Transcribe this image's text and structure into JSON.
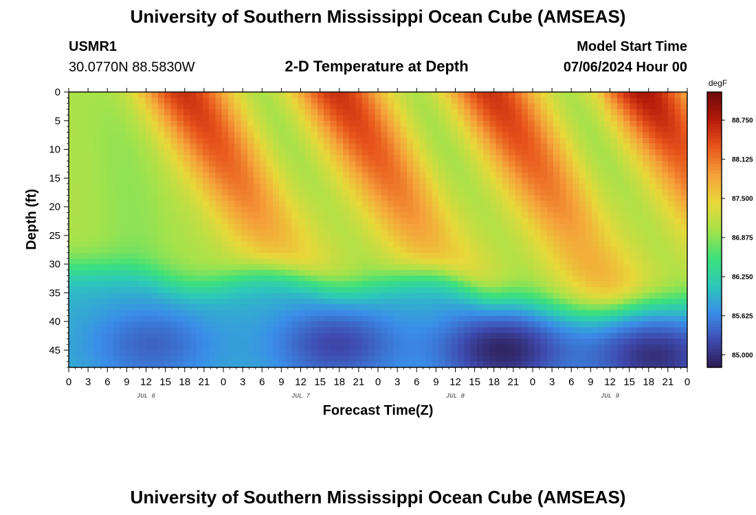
{
  "header": {
    "title": "University of Southern Mississippi Ocean Cube (AMSEAS)",
    "station_id": "USMR1",
    "coordinates": "30.0770N  88.5830W",
    "chart_subtitle": "2-D Temperature at Depth",
    "model_start_label": "Model Start Time",
    "model_start_value": "07/06/2024 Hour 00"
  },
  "footer": {
    "title": "University of Southern Mississippi Ocean Cube (AMSEAS)"
  },
  "colors": {
    "colormap": [
      "#2c1a4e",
      "#3f4bb0",
      "#3a8ee8",
      "#2cc9b8",
      "#3ee17a",
      "#a7e24a",
      "#e8d83a",
      "#f5a13a",
      "#e8571c",
      "#b51a0a",
      "#6e0a0a"
    ]
  },
  "chart_data": {
    "type": "heatmap",
    "title": "2-D Temperature at Depth",
    "xlabel": "Forecast Time(Z)",
    "ylabel": "Depth (ft)",
    "x_unit": "hours since 07/06/2024 00Z",
    "xlim": [
      0,
      96
    ],
    "ylim": [
      0,
      48
    ],
    "x_ticks": [
      0,
      3,
      6,
      9,
      12,
      15,
      18,
      21,
      24,
      27,
      30,
      33,
      36,
      39,
      42,
      45,
      48,
      51,
      54,
      57,
      60,
      63,
      66,
      69,
      72,
      75,
      78,
      81,
      84,
      87,
      90,
      93,
      96
    ],
    "x_tick_labels": [
      "0",
      "3",
      "6",
      "9",
      "12",
      "15",
      "18",
      "21",
      "0",
      "3",
      "6",
      "9",
      "12",
      "15",
      "18",
      "21",
      "0",
      "3",
      "6",
      "9",
      "12",
      "15",
      "18",
      "21",
      "0",
      "3",
      "6",
      "9",
      "12",
      "15",
      "18",
      "21",
      "0"
    ],
    "date_labels": [
      {
        "label": "JUL 6",
        "hour": 12
      },
      {
        "label": "JUL 7",
        "hour": 36
      },
      {
        "label": "JUL 8",
        "hour": 60
      },
      {
        "label": "JUL 9",
        "hour": 84
      }
    ],
    "y_ticks": [
      0,
      5,
      10,
      15,
      20,
      25,
      30,
      35,
      40,
      45
    ],
    "y_tick_labels": [
      "0",
      "5",
      "10",
      "15",
      "20",
      "25",
      "30",
      "35",
      "40",
      "45"
    ],
    "colorbar": {
      "unit": "degF",
      "min": 84.8,
      "max": 89.2,
      "ticks": [
        85.0,
        85.625,
        86.25,
        86.875,
        87.5,
        88.125,
        88.75
      ],
      "tick_labels": [
        "85.000",
        "85.625",
        "86.250",
        "86.875",
        "87.500",
        "88.125",
        "88.750"
      ]
    },
    "model": {
      "surface_cool_hours": [
        8,
        32,
        57,
        81
      ],
      "warm_phase_hours": [
        22,
        46,
        70,
        94
      ],
      "thermocline_crests": [
        [
          8,
          28.5
        ],
        [
          20,
          31.5
        ],
        [
          32,
          29
        ],
        [
          45,
          31.5
        ],
        [
          57,
          29.5
        ],
        [
          68,
          33
        ],
        [
          81,
          36
        ],
        [
          92,
          34
        ]
      ],
      "deep_cold_centers": [
        [
          13,
          44,
          85.4
        ],
        [
          42,
          44,
          85.2
        ],
        [
          68,
          45,
          84.9
        ],
        [
          92,
          46,
          85.0
        ]
      ]
    }
  }
}
